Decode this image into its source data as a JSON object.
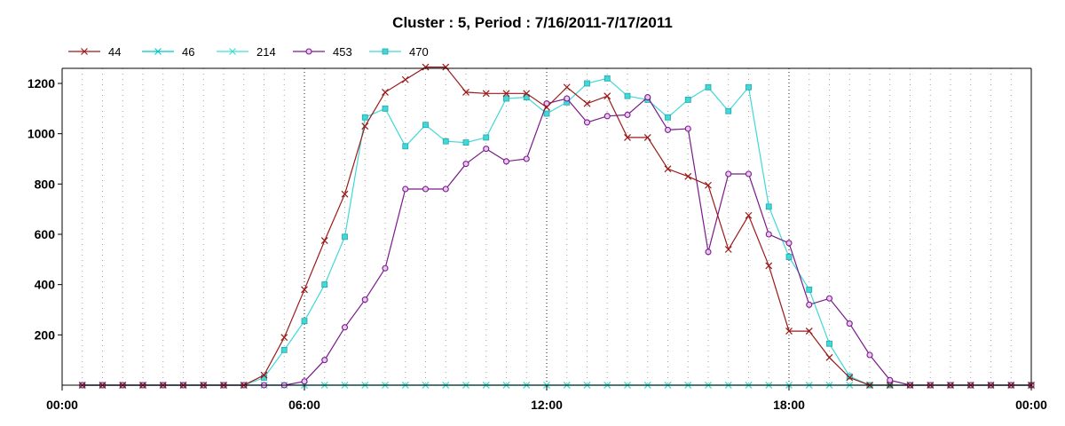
{
  "chart_data": {
    "type": "line",
    "title": "Cluster : 5, Period : 7/16/2011-7/17/2011",
    "xlabel": "",
    "ylabel": "",
    "x_unit": "time of day",
    "x_range": [
      "00:00",
      "24:00"
    ],
    "x_tick_labels": [
      "00:00",
      "06:00",
      "12:00",
      "18:00",
      "00:00"
    ],
    "x_tick_hours": [
      0,
      6,
      12,
      18,
      24
    ],
    "ylim": [
      0,
      1260
    ],
    "y_ticks": [
      200,
      400,
      600,
      800,
      1000,
      1200
    ],
    "grid": {
      "x": "dotted",
      "y": "off"
    },
    "legend": {
      "placement": "top-left"
    },
    "series": [
      {
        "name": "44",
        "color": "#9a1a1a",
        "marker": "x",
        "x": [
          "00:30",
          "01:00",
          "01:30",
          "02:00",
          "02:30",
          "03:00",
          "03:30",
          "04:00",
          "04:30",
          "05:00",
          "05:30",
          "06:00",
          "06:30",
          "07:00",
          "07:30",
          "08:00",
          "08:30",
          "09:00",
          "09:30",
          "10:00",
          "10:30",
          "11:00",
          "11:30",
          "12:00",
          "12:30",
          "13:00",
          "13:30",
          "14:00",
          "14:30",
          "15:00",
          "15:30",
          "16:00",
          "16:30",
          "17:00",
          "17:30",
          "18:00",
          "18:30",
          "19:00",
          "19:30",
          "20:00",
          "20:30",
          "21:00",
          "21:30",
          "22:00",
          "22:30",
          "23:00",
          "23:30",
          "24:00"
        ],
        "values": [
          0,
          0,
          0,
          0,
          0,
          0,
          0,
          0,
          0,
          40,
          190,
          380,
          575,
          760,
          1030,
          1165,
          1215,
          1265,
          1265,
          1165,
          1160,
          1160,
          1160,
          1105,
          1185,
          1120,
          1150,
          985,
          985,
          860,
          830,
          795,
          540,
          675,
          475,
          215,
          215,
          110,
          30,
          0,
          0,
          0,
          0,
          0,
          0,
          0,
          0,
          0
        ]
      },
      {
        "name": "46",
        "color": "#00c8c8",
        "marker": "asterisk",
        "x": [
          "00:30",
          "01:00",
          "01:30",
          "02:00",
          "02:30",
          "03:00",
          "03:30",
          "04:00",
          "04:30",
          "05:00",
          "05:30",
          "06:00",
          "06:30",
          "07:00",
          "07:30",
          "08:00",
          "08:30",
          "09:00",
          "09:30",
          "10:00",
          "10:30",
          "11:00",
          "11:30",
          "12:00",
          "12:30",
          "13:00",
          "13:30",
          "14:00",
          "14:30",
          "15:00",
          "15:30",
          "16:00",
          "16:30",
          "17:00",
          "17:30",
          "18:00",
          "18:30",
          "19:00",
          "19:30",
          "20:00",
          "20:30",
          "21:00",
          "21:30",
          "22:00",
          "22:30",
          "23:00",
          "23:30",
          "24:00"
        ],
        "values": [
          0,
          0,
          0,
          0,
          0,
          0,
          0,
          0,
          0,
          0,
          0,
          0,
          0,
          0,
          0,
          0,
          0,
          0,
          0,
          0,
          0,
          0,
          0,
          0,
          0,
          0,
          0,
          0,
          0,
          0,
          0,
          0,
          0,
          0,
          0,
          0,
          0,
          0,
          0,
          0,
          0,
          0,
          0,
          0,
          0,
          0,
          0,
          0
        ]
      },
      {
        "name": "214",
        "color": "#40e0d0",
        "marker": "x",
        "x": [
          "00:30",
          "01:00",
          "01:30",
          "02:00",
          "02:30",
          "03:00",
          "03:30",
          "04:00",
          "04:30",
          "05:00",
          "05:30",
          "06:00",
          "06:30",
          "07:00",
          "07:30",
          "08:00",
          "08:30",
          "09:00",
          "09:30",
          "10:00",
          "10:30",
          "11:00",
          "11:30",
          "12:00",
          "12:30",
          "13:00",
          "13:30",
          "14:00",
          "14:30",
          "15:00",
          "15:30",
          "16:00",
          "16:30",
          "17:00",
          "17:30",
          "18:00",
          "18:30",
          "19:00",
          "19:30",
          "20:00",
          "20:30",
          "21:00",
          "21:30",
          "22:00",
          "22:30",
          "23:00",
          "23:30",
          "24:00"
        ],
        "values": [
          0,
          0,
          0,
          0,
          0,
          0,
          0,
          0,
          0,
          0,
          0,
          0,
          0,
          0,
          0,
          0,
          0,
          0,
          0,
          0,
          0,
          0,
          0,
          0,
          0,
          0,
          0,
          0,
          0,
          0,
          0,
          0,
          0,
          0,
          0,
          0,
          0,
          0,
          0,
          0,
          0,
          0,
          0,
          0,
          0,
          0,
          0,
          0
        ]
      },
      {
        "name": "453",
        "color": "#7a1a8a",
        "marker": "circle",
        "x": [
          "00:30",
          "01:00",
          "01:30",
          "02:00",
          "02:30",
          "03:00",
          "03:30",
          "04:00",
          "04:30",
          "05:00",
          "05:30",
          "06:00",
          "06:30",
          "07:00",
          "07:30",
          "08:00",
          "08:30",
          "09:00",
          "09:30",
          "10:00",
          "10:30",
          "11:00",
          "11:30",
          "12:00",
          "12:30",
          "13:00",
          "13:30",
          "14:00",
          "14:30",
          "15:00",
          "15:30",
          "16:00",
          "16:30",
          "17:00",
          "17:30",
          "18:00",
          "18:30",
          "19:00",
          "19:30",
          "20:00",
          "20:30",
          "21:00",
          "21:30",
          "22:00",
          "22:30",
          "23:00",
          "23:30",
          "24:00"
        ],
        "values": [
          0,
          0,
          0,
          0,
          0,
          0,
          0,
          0,
          0,
          0,
          0,
          15,
          100,
          230,
          340,
          465,
          780,
          780,
          780,
          880,
          940,
          890,
          900,
          1120,
          1140,
          1045,
          1070,
          1075,
          1145,
          1015,
          1020,
          530,
          840,
          840,
          600,
          565,
          320,
          345,
          245,
          120,
          20,
          0,
          0,
          0,
          0,
          0,
          0,
          0
        ]
      },
      {
        "name": "470",
        "color": "#40d8d8",
        "marker": "square",
        "x": [
          "00:30",
          "01:00",
          "01:30",
          "02:00",
          "02:30",
          "03:00",
          "03:30",
          "04:00",
          "04:30",
          "05:00",
          "05:30",
          "06:00",
          "06:30",
          "07:00",
          "07:30",
          "08:00",
          "08:30",
          "09:00",
          "09:30",
          "10:00",
          "10:30",
          "11:00",
          "11:30",
          "12:00",
          "12:30",
          "13:00",
          "13:30",
          "14:00",
          "14:30",
          "15:00",
          "15:30",
          "16:00",
          "16:30",
          "17:00",
          "17:30",
          "18:00",
          "18:30",
          "19:00",
          "19:30",
          "20:00",
          "20:30",
          "21:00",
          "21:30",
          "22:00",
          "22:30",
          "23:00",
          "23:30",
          "24:00"
        ],
        "values": [
          0,
          0,
          0,
          0,
          0,
          0,
          0,
          0,
          0,
          30,
          140,
          255,
          400,
          590,
          1065,
          1100,
          950,
          1035,
          970,
          965,
          985,
          1140,
          1145,
          1080,
          1125,
          1200,
          1220,
          1150,
          1135,
          1065,
          1135,
          1185,
          1090,
          1185,
          710,
          510,
          380,
          165,
          35,
          0,
          0,
          0,
          0,
          0,
          0,
          0,
          0,
          0
        ]
      }
    ]
  }
}
